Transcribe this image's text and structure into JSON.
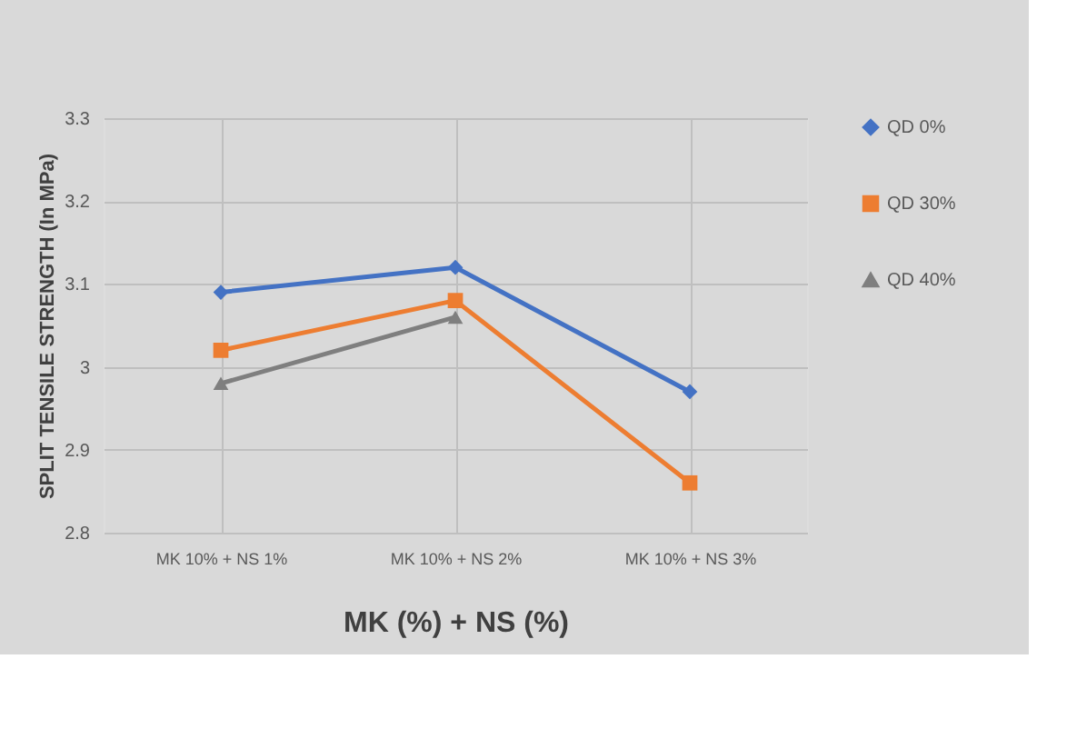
{
  "chart_data": {
    "type": "line",
    "xlabel": "MK (%) + NS (%)",
    "ylabel": "SPLIT TENSILE STRENGTH (In MPa)",
    "categories": [
      "MK 10% + NS 1%",
      "MK 10% + NS 2%",
      "MK 10% + NS 3%"
    ],
    "series": [
      {
        "name": "QD 0%",
        "color": "#4472c4",
        "marker": "diamond",
        "values": [
          3.09,
          3.12,
          2.97
        ]
      },
      {
        "name": "QD 30%",
        "color": "#ed7d31",
        "marker": "square",
        "values": [
          3.02,
          3.08,
          2.86
        ]
      },
      {
        "name": "QD 40%",
        "color": "#7f7f7f",
        "marker": "triangle",
        "values": [
          2.98,
          3.06,
          null
        ]
      }
    ],
    "ylim": [
      2.8,
      3.3
    ],
    "yticks": [
      2.8,
      2.9,
      3,
      3.1,
      3.2,
      3.3
    ],
    "grid": true,
    "legend": "right"
  }
}
